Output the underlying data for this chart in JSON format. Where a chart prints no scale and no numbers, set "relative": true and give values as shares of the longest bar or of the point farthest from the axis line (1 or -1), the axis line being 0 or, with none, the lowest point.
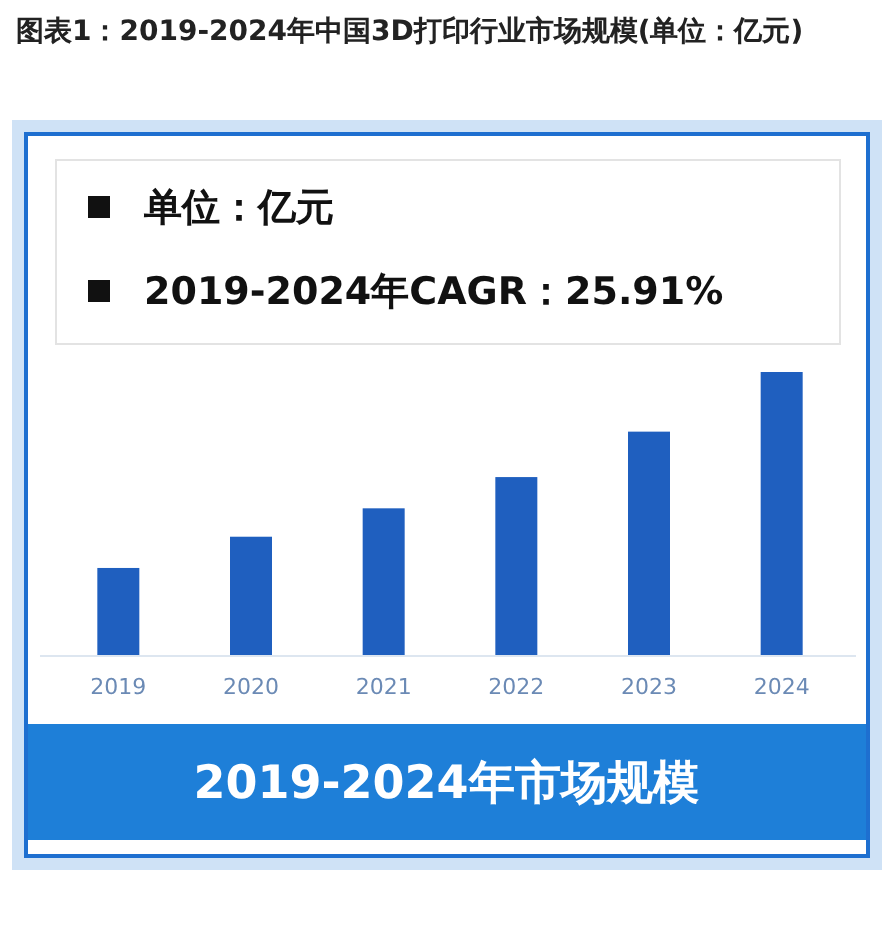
{
  "chart_data": {
    "type": "bar",
    "title": "图表1：2019-2024年中国3D打印行业市场规模(单位：亿元)",
    "xlabel": "2019-2024年市场规模",
    "annotations": [
      "单位：亿元",
      "2019-2024年CAGR：25.91%"
    ],
    "categories": [
      "2019",
      "2020",
      "2021",
      "2022",
      "2023",
      "2024"
    ],
    "values": [
      0.31,
      0.42,
      0.52,
      0.63,
      0.79,
      1
    ],
    "color": "#1f5fbf",
    "relative": true
  }
}
